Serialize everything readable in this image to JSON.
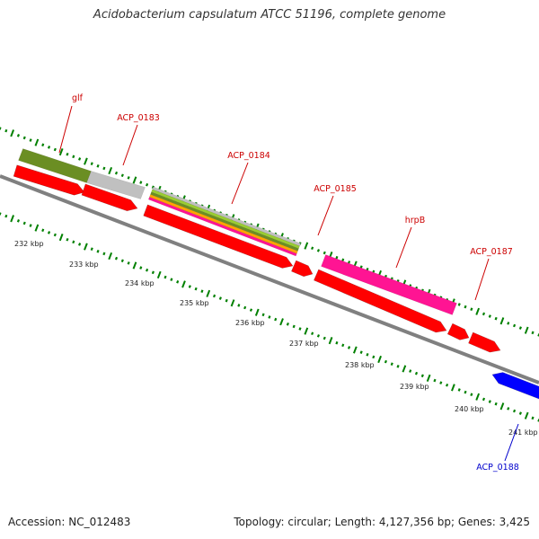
{
  "title": "Acidobacterium capsulatum ATCC 51196, complete genome",
  "footer": {
    "accession": "Accession: NC_012483",
    "summary": "Topology: circular; Length: 4,127,356 bp; Genes: 3,425"
  },
  "colors": {
    "cds": "#ff0000",
    "cds_minus": "#0000ff",
    "label_plus": "#cc0000",
    "label_minus": "#0000cc",
    "tick": "#008000",
    "backbone": "#808080",
    "glf_feature": "#6b8e23",
    "gray_feature": "#c0c0c0",
    "hrpB_feature": "#ff1493",
    "multi_stripe": [
      "#ff1493",
      "#ffa500",
      "#6b8e23",
      "#9acd32",
      "#c0c0c0"
    ]
  },
  "kbp_labels": [
    "232 kbp",
    "233 kbp",
    "234 kbp",
    "235 kbp",
    "236 kbp",
    "237 kbp",
    "238 kbp",
    "239 kbp",
    "240 kbp",
    "241 kbp"
  ],
  "gene_labels": [
    {
      "text": "glf",
      "strand": "plus"
    },
    {
      "text": "ACP_0183",
      "strand": "plus"
    },
    {
      "text": "ACP_0184",
      "strand": "plus"
    },
    {
      "text": "ACP_0185",
      "strand": "plus"
    },
    {
      "text": "hrpB",
      "strand": "plus"
    },
    {
      "text": "ACP_0187",
      "strand": "plus"
    },
    {
      "text": "ACP_0188",
      "strand": "minus"
    }
  ]
}
